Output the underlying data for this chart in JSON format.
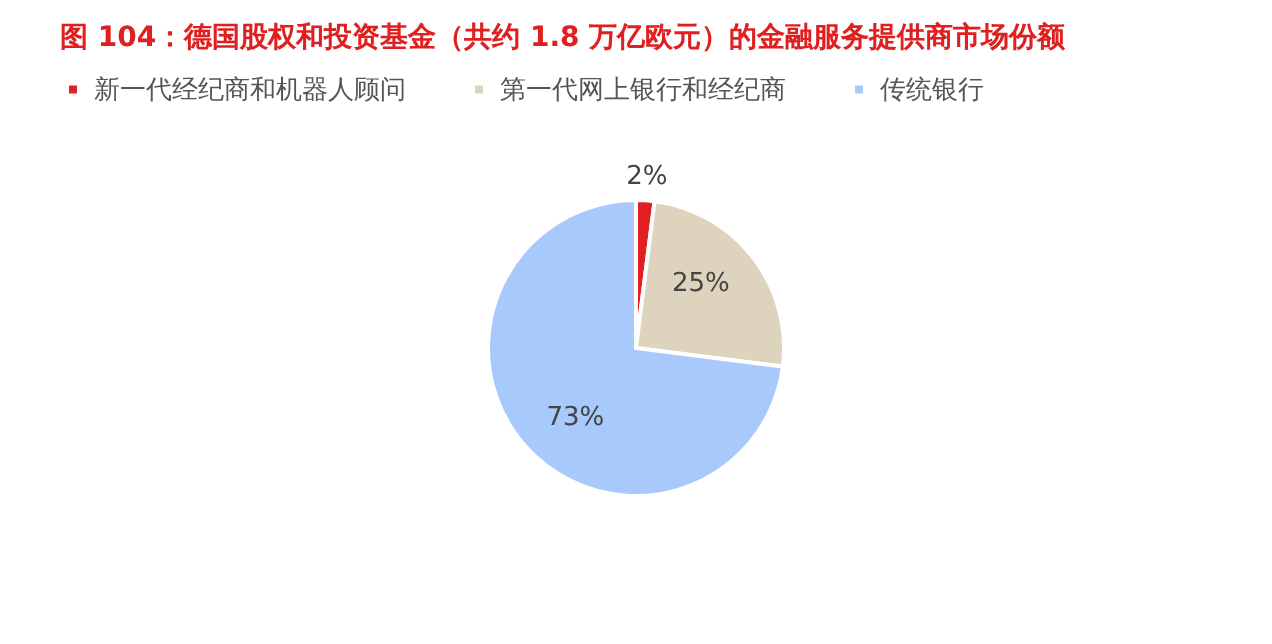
{
  "chart_data": {
    "type": "pie",
    "title": "图 104：德国股权和投资基金（共约 1.8 万亿欧元）的金融服务提供商市场份额",
    "categories": [
      "新一代经纪商和机器人顾问",
      "第一代网上银行和经纪商",
      "传统银行"
    ],
    "values": [
      2,
      25,
      73
    ],
    "colors": [
      "#e02020",
      "#ded4bd",
      "#a8c9fb"
    ],
    "value_labels": [
      "2%",
      "25%",
      "73%"
    ],
    "legend": "top"
  }
}
